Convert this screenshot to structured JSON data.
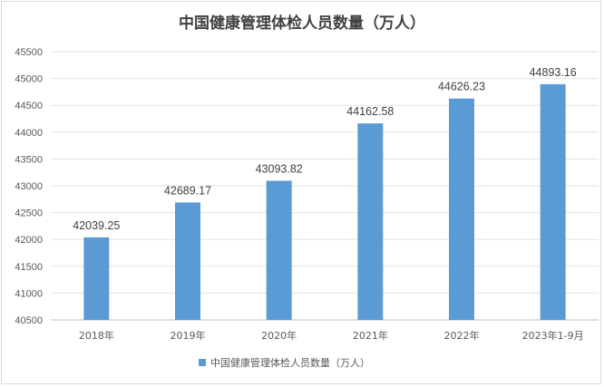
{
  "chart_data": {
    "type": "bar",
    "title": "中国健康管理体检人员数量（万人）",
    "categories": [
      "2018年",
      "2019年",
      "2020年",
      "2021年",
      "2022年",
      "2023年1-9月"
    ],
    "series": [
      {
        "name": "中国健康管理体检人员数量（万人）",
        "values": [
          42039.25,
          42689.17,
          43093.82,
          44162.58,
          44626.23,
          44893.16
        ],
        "labels": [
          "42039.25",
          "42689.17",
          "43093.82",
          "44162.58",
          "44626.23",
          "44893.16"
        ],
        "color": "#5b9bd5"
      }
    ],
    "ylim": [
      40500,
      45500
    ],
    "yticks": [
      40500,
      41000,
      41500,
      42000,
      42500,
      43000,
      43500,
      44000,
      44500,
      45000,
      45500
    ],
    "grid": true,
    "legend": "bottom"
  }
}
